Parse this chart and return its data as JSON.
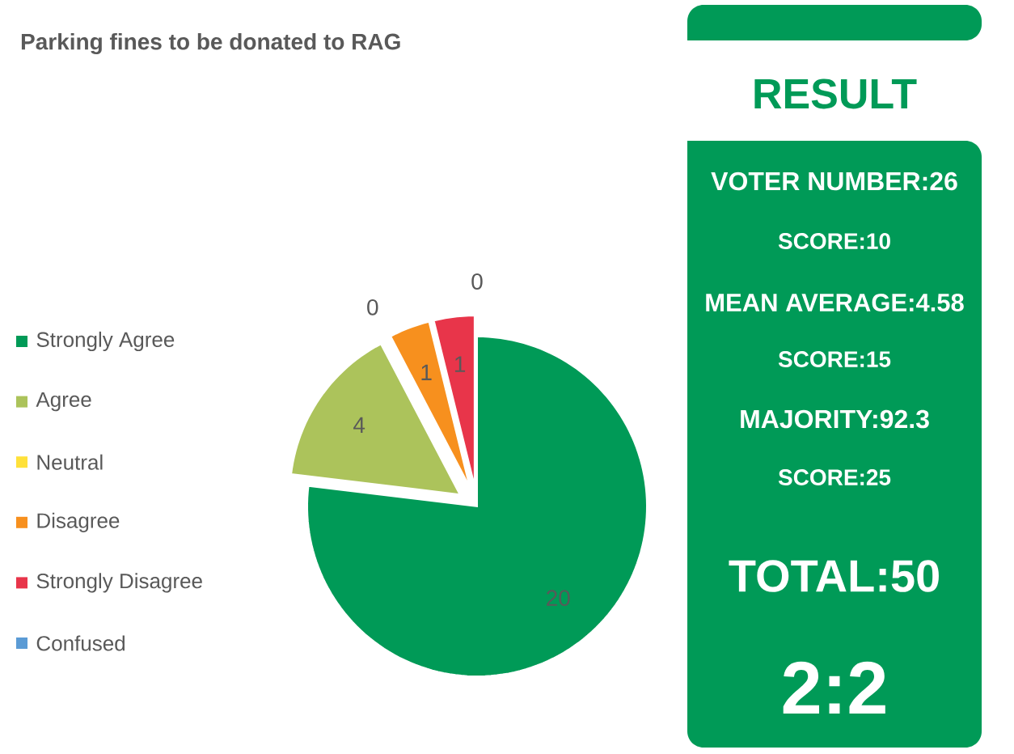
{
  "chart_data": [
    {
      "type": "pie",
      "title": "Parking fines to be donated to RAG",
      "categories": [
        "Strongly Agree",
        "Agree",
        "Neutral",
        "Disagree",
        "Strongly Disagree",
        "Confused"
      ],
      "values": [
        20,
        4,
        0,
        1,
        1,
        0
      ],
      "colors": [
        "#009a57",
        "#acc35b",
        "#ffe13a",
        "#f7901e",
        "#e8354a",
        "#5b9bd5"
      ],
      "value_labels": [
        "20",
        "4",
        "0",
        "1",
        "1",
        "0"
      ],
      "legend": "left"
    },
    {
      "type": "other",
      "title": "RESULT",
      "annotations": [
        "VOTER NUMBER:26",
        "SCORE:10",
        "MEAN AVERAGE:4.58",
        "SCORE:15",
        "MAJORITY:92.3",
        "SCORE:25",
        "TOTAL:50",
        "2:2"
      ]
    }
  ]
}
